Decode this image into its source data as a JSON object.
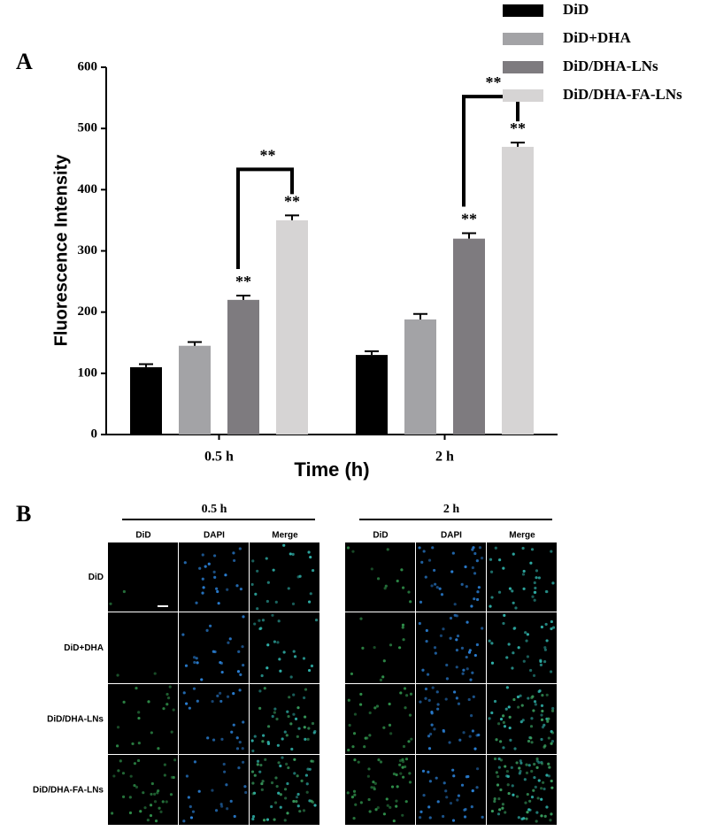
{
  "chart_data": {
    "type": "bar",
    "panel_label": "A",
    "x_label": "Time (h)",
    "y_label": "Fluorescence Intensity",
    "categories": [
      "0.5 h",
      "2 h"
    ],
    "series": [
      {
        "name": "DiD",
        "color": "#000000",
        "values": [
          110,
          130
        ],
        "errors": [
          5,
          6
        ]
      },
      {
        "name": "DiD+DHA",
        "color": "#a3a3a6",
        "values": [
          145,
          188
        ],
        "errors": [
          6,
          9
        ]
      },
      {
        "name": "DiD/DHA-LNs",
        "color": "#7e7b7f",
        "values": [
          220,
          320
        ],
        "errors": [
          7,
          9
        ],
        "marks": [
          "**",
          "**"
        ]
      },
      {
        "name": "DiD/DHA-FA-LNs",
        "color": "#d6d4d4",
        "values": [
          350,
          470
        ],
        "errors": [
          8,
          7
        ],
        "marks": [
          "**",
          "**"
        ]
      }
    ],
    "brackets": [
      "**",
      "**"
    ],
    "ylim": [
      0,
      600
    ],
    "yticks": [
      0,
      100,
      200,
      300,
      400,
      500,
      600
    ],
    "grid": false,
    "legend": "top-right"
  },
  "panel_b": {
    "label": "B",
    "groups": [
      "0.5 h",
      "2 h"
    ],
    "columns": [
      "DiD",
      "DAPI",
      "Merge"
    ],
    "rows": [
      "DiD",
      "DiD+DHA",
      "DiD/DHA-LNs",
      "DiD/DHA-FA-LNs"
    ]
  }
}
